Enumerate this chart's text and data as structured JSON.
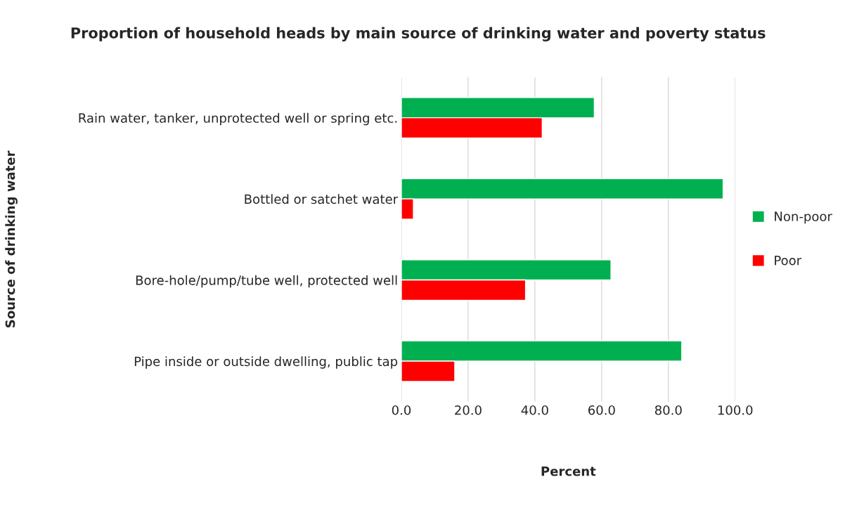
{
  "chart_data": {
    "type": "bar",
    "orientation": "horizontal",
    "title": "Proportion of household heads by main source of drinking water and poverty status",
    "xlabel": "Percent",
    "ylabel": "Source of drinking water",
    "categories": [
      "Rain water, tanker, unprotected well or spring etc.",
      "Bottled or satchet water",
      "Bore-hole/pump/tube well, protected well",
      "Pipe inside or outside dwelling, public tap"
    ],
    "series": [
      {
        "name": "Non-poor",
        "color": "#00b050",
        "values": [
          57.8,
          96.4,
          62.8,
          84.0
        ]
      },
      {
        "name": "Poor",
        "color": "#ff0000",
        "values": [
          42.2,
          3.6,
          37.2,
          16.0
        ]
      }
    ],
    "xlim": [
      0,
      100
    ],
    "xticks": [
      {
        "value": 0,
        "label": "0.0"
      },
      {
        "value": 20,
        "label": "20.0"
      },
      {
        "value": 40,
        "label": "40.0"
      },
      {
        "value": 60,
        "label": "60.0"
      },
      {
        "value": 80,
        "label": "80.0"
      },
      {
        "value": 100,
        "label": "100.0"
      }
    ],
    "grid": "x",
    "legend": "right"
  }
}
